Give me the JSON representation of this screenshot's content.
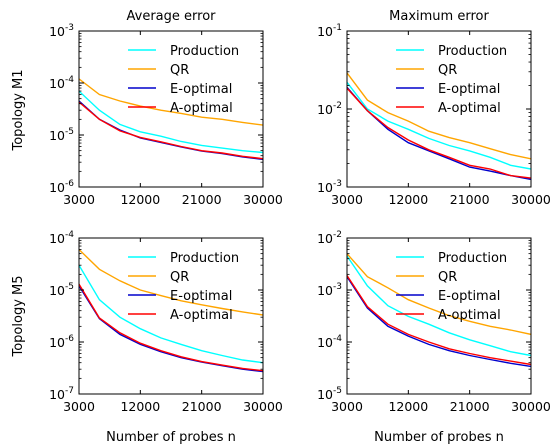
{
  "figure": {
    "col_titles": [
      "Average error",
      "Maximum error"
    ],
    "row_labels": [
      "Topology M1",
      "Topology M5"
    ],
    "xlabel": "Number of probes n"
  },
  "chart_data": [
    {
      "type": "line",
      "row": 0,
      "col": 0,
      "yscale": "log",
      "title": "Average error",
      "ylabel": "Topology M1",
      "xlabel": "",
      "xlim": [
        3000,
        30000
      ],
      "ylim_exp": [
        -6,
        -3
      ],
      "xticks": [
        "3000",
        "12000",
        "21000",
        "30000"
      ],
      "yticks": [
        {
          "base": "10",
          "exp": "-6"
        },
        {
          "base": "10",
          "exp": "-5"
        },
        {
          "base": "10",
          "exp": "-4"
        },
        {
          "base": "10",
          "exp": "-3"
        }
      ],
      "legend_position": "upper right",
      "grid": false,
      "x": [
        3000,
        6000,
        9000,
        12000,
        15000,
        18000,
        21000,
        24000,
        27000,
        30000
      ],
      "series": [
        {
          "name": "Production",
          "color": "#00ffff",
          "values": [
            7e-05,
            3e-05,
            1.6e-05,
            1.15e-05,
            9.5e-06,
            7.5e-06,
            6.3e-06,
            5.6e-06,
            5e-06,
            4.6e-06
          ]
        },
        {
          "name": "QR",
          "color": "#ffa500",
          "values": [
            0.00012,
            6e-05,
            4.5e-05,
            3.6e-05,
            3e-05,
            2.6e-05,
            2.2e-05,
            2e-05,
            1.75e-05,
            1.55e-05
          ]
        },
        {
          "name": "E-optimal",
          "color": "#0000cc",
          "values": [
            4.5e-05,
            2e-05,
            1.25e-05,
            8.8e-06,
            7.2e-06,
            5.9e-06,
            4.9e-06,
            4.4e-06,
            3.8e-06,
            3.4e-06
          ]
        },
        {
          "name": "A-optimal",
          "color": "#ff0000",
          "values": [
            4.3e-05,
            2e-05,
            1.2e-05,
            9e-06,
            7.4e-06,
            6e-06,
            5e-06,
            4.5e-06,
            3.9e-06,
            3.5e-06
          ]
        }
      ]
    },
    {
      "type": "line",
      "row": 0,
      "col": 1,
      "yscale": "log",
      "title": "Maximum error",
      "ylabel": "",
      "xlabel": "",
      "xlim": [
        3000,
        30000
      ],
      "ylim_exp": [
        -3,
        -1
      ],
      "xticks": [
        "3000",
        "12000",
        "21000",
        "30000"
      ],
      "yticks": [
        {
          "base": "10",
          "exp": "-3"
        },
        {
          "base": "10",
          "exp": "-2"
        },
        {
          "base": "10",
          "exp": "-1"
        }
      ],
      "legend_position": "upper right",
      "grid": false,
      "x": [
        3000,
        6000,
        9000,
        12000,
        15000,
        18000,
        21000,
        24000,
        27000,
        30000
      ],
      "series": [
        {
          "name": "Production",
          "color": "#00ffff",
          "values": [
            0.022,
            0.01,
            0.007,
            0.0055,
            0.0042,
            0.0034,
            0.0029,
            0.0024,
            0.0019,
            0.0017
          ]
        },
        {
          "name": "QR",
          "color": "#ffa500",
          "values": [
            0.029,
            0.013,
            0.009,
            0.007,
            0.0052,
            0.0043,
            0.0037,
            0.0031,
            0.0026,
            0.0023
          ]
        },
        {
          "name": "E-optimal",
          "color": "#0000cc",
          "values": [
            0.019,
            0.0095,
            0.0055,
            0.0037,
            0.0029,
            0.0023,
            0.0018,
            0.0016,
            0.0014,
            0.00125
          ]
        },
        {
          "name": "A-optimal",
          "color": "#ff0000",
          "values": [
            0.0185,
            0.0095,
            0.0058,
            0.004,
            0.003,
            0.0024,
            0.0019,
            0.0017,
            0.0014,
            0.0013
          ]
        }
      ]
    },
    {
      "type": "line",
      "row": 1,
      "col": 0,
      "yscale": "log",
      "title": "",
      "ylabel": "Topology M5",
      "xlabel": "Number of probes n",
      "xlim": [
        3000,
        30000
      ],
      "ylim_exp": [
        -7,
        -4
      ],
      "xticks": [
        "3000",
        "12000",
        "21000",
        "30000"
      ],
      "yticks": [
        {
          "base": "10",
          "exp": "-7"
        },
        {
          "base": "10",
          "exp": "-6"
        },
        {
          "base": "10",
          "exp": "-5"
        },
        {
          "base": "10",
          "exp": "-4"
        }
      ],
      "legend_position": "upper right",
      "grid": false,
      "x": [
        3000,
        6000,
        9000,
        12000,
        15000,
        18000,
        21000,
        24000,
        27000,
        30000
      ],
      "series": [
        {
          "name": "Production",
          "color": "#00ffff",
          "values": [
            3e-05,
            6.5e-06,
            3e-06,
            1.8e-06,
            1.2e-06,
            9e-07,
            6.8e-07,
            5.5e-07,
            4.5e-07,
            4e-07
          ]
        },
        {
          "name": "QR",
          "color": "#ffa500",
          "values": [
            6e-05,
            2.5e-05,
            1.5e-05,
            1e-05,
            7.8e-06,
            6.2e-06,
            5.2e-06,
            4.4e-06,
            3.8e-06,
            3.3e-06
          ]
        },
        {
          "name": "E-optimal",
          "color": "#0000cc",
          "values": [
            1.2e-05,
            2.8e-06,
            1.4e-06,
            9e-07,
            6.5e-07,
            5e-07,
            4.1e-07,
            3.5e-07,
            3e-07,
            2.7e-07
          ]
        },
        {
          "name": "A-optimal",
          "color": "#ff0000",
          "values": [
            1.3e-05,
            2.9e-06,
            1.5e-06,
            9.5e-07,
            6.8e-07,
            5.2e-07,
            4.2e-07,
            3.6e-07,
            3.1e-07,
            2.8e-07
          ]
        }
      ]
    },
    {
      "type": "line",
      "row": 1,
      "col": 1,
      "yscale": "log",
      "title": "",
      "ylabel": "",
      "xlabel": "Number of probes n",
      "xlim": [
        3000,
        30000
      ],
      "ylim_exp": [
        -5,
        -2
      ],
      "xticks": [
        "3000",
        "12000",
        "21000",
        "30000"
      ],
      "yticks": [
        {
          "base": "10",
          "exp": "-5"
        },
        {
          "base": "10",
          "exp": "-4"
        },
        {
          "base": "10",
          "exp": "-3"
        },
        {
          "base": "10",
          "exp": "-2"
        }
      ],
      "legend_position": "upper right",
      "grid": false,
      "x": [
        3000,
        6000,
        9000,
        12000,
        15000,
        18000,
        21000,
        24000,
        27000,
        30000
      ],
      "series": [
        {
          "name": "Production",
          "color": "#00ffff",
          "values": [
            0.0045,
            0.0012,
            0.0005,
            0.00031,
            0.00022,
            0.00015,
            0.00011,
            8.5e-05,
            6.5e-05,
            5.5e-05
          ]
        },
        {
          "name": "QR",
          "color": "#ffa500",
          "values": [
            0.005,
            0.0018,
            0.0011,
            0.00065,
            0.00045,
            0.00032,
            0.00025,
            0.0002,
            0.00017,
            0.00014
          ]
        },
        {
          "name": "E-optimal",
          "color": "#0000cc",
          "values": [
            0.0018,
            0.00045,
            0.0002,
            0.00013,
            9e-05,
            6.8e-05,
            5.5e-05,
            4.6e-05,
            3.9e-05,
            3.4e-05
          ]
        },
        {
          "name": "A-optimal",
          "color": "#ff0000",
          "values": [
            0.0019,
            0.00048,
            0.00022,
            0.00014,
            0.0001,
            7.4e-05,
            6e-05,
            5e-05,
            4.3e-05,
            3.7e-05
          ]
        }
      ]
    }
  ]
}
